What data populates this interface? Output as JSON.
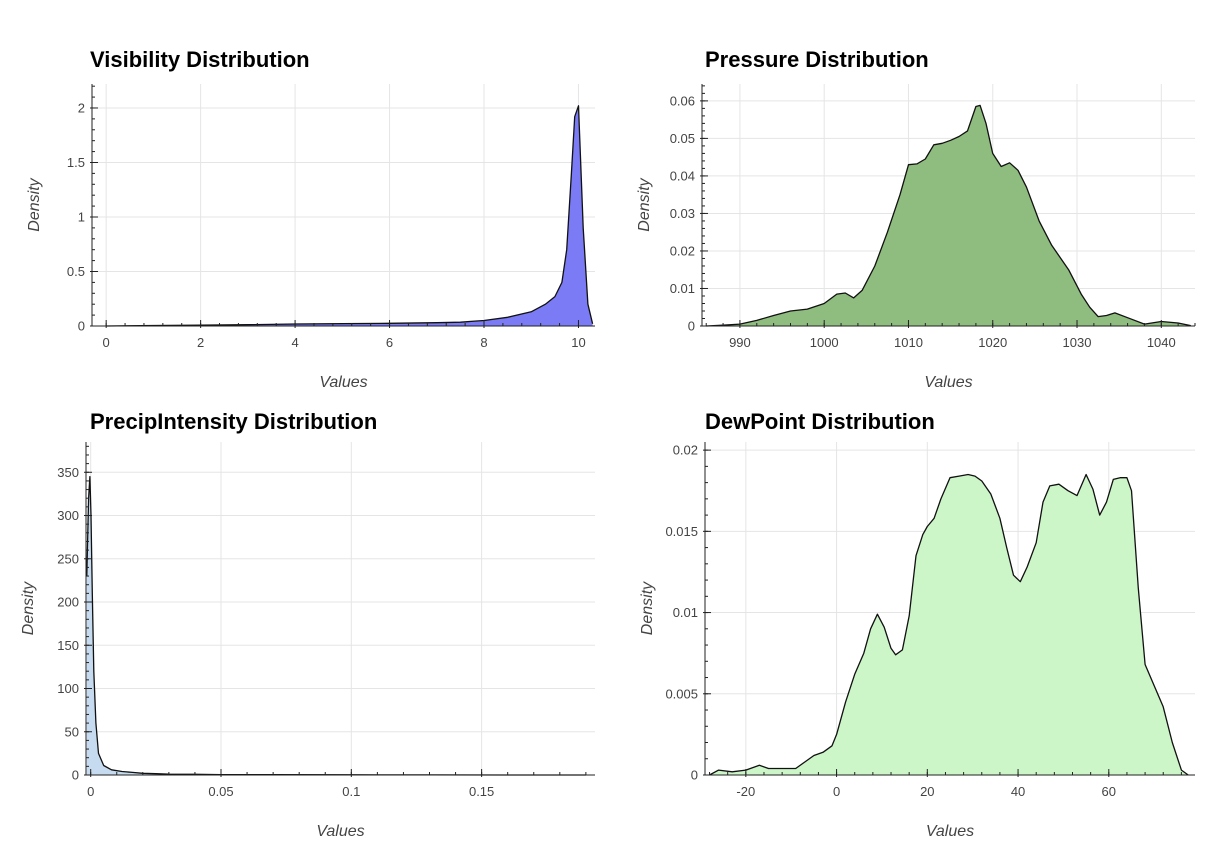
{
  "chart_data": [
    {
      "id": "visibility",
      "type": "area",
      "title": "Visibility Distribution",
      "xlabel": "Values",
      "ylabel": "Density",
      "xlim": [
        -0.3,
        10.35
      ],
      "ylim": [
        0,
        2.22
      ],
      "xticks": [
        0,
        2,
        4,
        6,
        8,
        10
      ],
      "yticks": [
        0,
        0.5,
        1,
        1.5,
        2
      ],
      "xtick_labels": [
        "0",
        "2",
        "4",
        "6",
        "8",
        "10"
      ],
      "ytick_labels": [
        "0",
        "0.5",
        "1",
        "1.5",
        "2"
      ],
      "grid": true,
      "fill": "#7b7bf5",
      "series": [
        {
          "x": [
            0,
            1,
            2,
            3,
            4,
            5,
            6,
            7,
            7.5,
            7.8,
            8,
            8.5,
            9,
            9.3,
            9.5,
            9.65,
            9.75,
            9.85,
            9.92,
            10,
            10.1,
            10.2,
            10.3
          ],
          "y": [
            0,
            0.005,
            0.008,
            0.012,
            0.018,
            0.022,
            0.025,
            0.03,
            0.035,
            0.045,
            0.05,
            0.08,
            0.13,
            0.2,
            0.27,
            0.4,
            0.7,
            1.4,
            1.92,
            2.02,
            0.9,
            0.2,
            0.02
          ]
        }
      ]
    },
    {
      "id": "pressure",
      "type": "area",
      "title": "Pressure Distribution",
      "xlabel": "Values",
      "ylabel": "Density",
      "xlim": [
        985.5,
        1044
      ],
      "ylim": [
        0,
        0.0645
      ],
      "xticks": [
        990,
        1000,
        1010,
        1020,
        1030,
        1040
      ],
      "yticks": [
        0,
        0.01,
        0.02,
        0.03,
        0.04,
        0.05,
        0.06
      ],
      "xtick_labels": [
        "990",
        "1000",
        "1010",
        "1020",
        "1030",
        "1040"
      ],
      "ytick_labels": [
        "0",
        "0.01",
        "0.02",
        "0.03",
        "0.04",
        "0.05",
        "0.06"
      ],
      "grid": true,
      "fill": "#8fbc7f",
      "series": [
        {
          "x": [
            986,
            988,
            990,
            992,
            994,
            996,
            998,
            1000,
            1001.5,
            1002.5,
            1003.5,
            1004.5,
            1006,
            1007.5,
            1009,
            1010,
            1011,
            1012,
            1013,
            1014,
            1015,
            1016,
            1017,
            1018,
            1018.5,
            1019.2,
            1020,
            1021,
            1022,
            1023,
            1024,
            1025.5,
            1027,
            1029,
            1030.5,
            1031.5,
            1032.5,
            1033.5,
            1034.5,
            1036,
            1038,
            1040,
            1042,
            1043.5
          ],
          "y": [
            0,
            0.0002,
            0.0005,
            0.0015,
            0.0028,
            0.004,
            0.0045,
            0.006,
            0.0085,
            0.0088,
            0.0075,
            0.0095,
            0.016,
            0.025,
            0.035,
            0.043,
            0.0432,
            0.0445,
            0.0483,
            0.0487,
            0.0495,
            0.0505,
            0.052,
            0.0585,
            0.0588,
            0.054,
            0.046,
            0.0425,
            0.0435,
            0.0415,
            0.037,
            0.028,
            0.0215,
            0.015,
            0.0085,
            0.005,
            0.0025,
            0.0028,
            0.0035,
            0.0022,
            0.0005,
            0.0012,
            0.0008,
            0.0001
          ]
        }
      ]
    },
    {
      "id": "precip",
      "type": "area",
      "title": "PrecipIntensity Distribution",
      "xlabel": "Values",
      "ylabel": "Density",
      "xlim": [
        -0.0018,
        0.1935
      ],
      "ylim": [
        0,
        385
      ],
      "xticks": [
        0,
        0.05,
        0.1,
        0.15
      ],
      "yticks": [
        0,
        50,
        100,
        150,
        200,
        250,
        300,
        350
      ],
      "xtick_labels": [
        "0",
        "0.05",
        "0.1",
        "0.15"
      ],
      "ytick_labels": [
        "0",
        "50",
        "100",
        "150",
        "200",
        "250",
        "300",
        "350"
      ],
      "grid": true,
      "fill": "#c6dbef",
      "series": [
        {
          "x": [
            -0.0015,
            -0.0008,
            -0.0003,
            0.0001,
            0.0006,
            0.0012,
            0.002,
            0.003,
            0.005,
            0.008,
            0.012,
            0.016,
            0.02,
            0.025,
            0.03,
            0.04,
            0.05,
            0.07,
            0.1,
            0.13,
            0.16,
            0.19
          ],
          "y": [
            230,
            320,
            345,
            300,
            210,
            120,
            60,
            25,
            11,
            6,
            4,
            3,
            2,
            1.5,
            1,
            0.8,
            0.5,
            0.3,
            0.2,
            0.1,
            0.05,
            0
          ]
        }
      ]
    },
    {
      "id": "dewpoint",
      "type": "area",
      "title": "DewPoint Distribution",
      "xlabel": "Values",
      "ylabel": "Density",
      "xlim": [
        -29,
        79
      ],
      "ylim": [
        0,
        0.0205
      ],
      "xticks": [
        -20,
        0,
        20,
        40,
        60
      ],
      "yticks": [
        0,
        0.005,
        0.01,
        0.015,
        0.02
      ],
      "xtick_labels": [
        "-20",
        "0",
        "20",
        "40",
        "60"
      ],
      "ytick_labels": [
        "0",
        "0.005",
        "0.01",
        "0.015",
        "0.02"
      ],
      "grid": true,
      "fill": "#ccf5c8",
      "series": [
        {
          "x": [
            -28,
            -26,
            -23,
            -20,
            -17,
            -15,
            -12,
            -9,
            -7,
            -5,
            -3,
            -1,
            0,
            2,
            4,
            6,
            7.5,
            9,
            10.5,
            12,
            13,
            14.5,
            16,
            17.5,
            19,
            20,
            21.5,
            23,
            25,
            27,
            29,
            30.5,
            32,
            34,
            36,
            37.5,
            39,
            40.5,
            42,
            44,
            45.5,
            47,
            49,
            51,
            53,
            55,
            56.5,
            58,
            59.5,
            61,
            62.5,
            64,
            65,
            66.5,
            68,
            70,
            72,
            74,
            76,
            77.5
          ],
          "y": [
            0,
            0.0003,
            0.0002,
            0.0003,
            0.0006,
            0.0004,
            0.0004,
            0.0004,
            0.0008,
            0.0012,
            0.0014,
            0.0018,
            0.0025,
            0.0045,
            0.0062,
            0.0075,
            0.009,
            0.0099,
            0.0091,
            0.0078,
            0.0074,
            0.0077,
            0.0098,
            0.0135,
            0.0148,
            0.0153,
            0.0158,
            0.017,
            0.0183,
            0.0184,
            0.0185,
            0.0184,
            0.0181,
            0.0173,
            0.0158,
            0.014,
            0.0123,
            0.0119,
            0.0128,
            0.0143,
            0.0168,
            0.0178,
            0.0179,
            0.0175,
            0.0172,
            0.0185,
            0.0176,
            0.016,
            0.0168,
            0.0182,
            0.0183,
            0.0183,
            0.0175,
            0.0115,
            0.0068,
            0.0055,
            0.0042,
            0.002,
            0.0003,
            0
          ]
        }
      ]
    }
  ]
}
